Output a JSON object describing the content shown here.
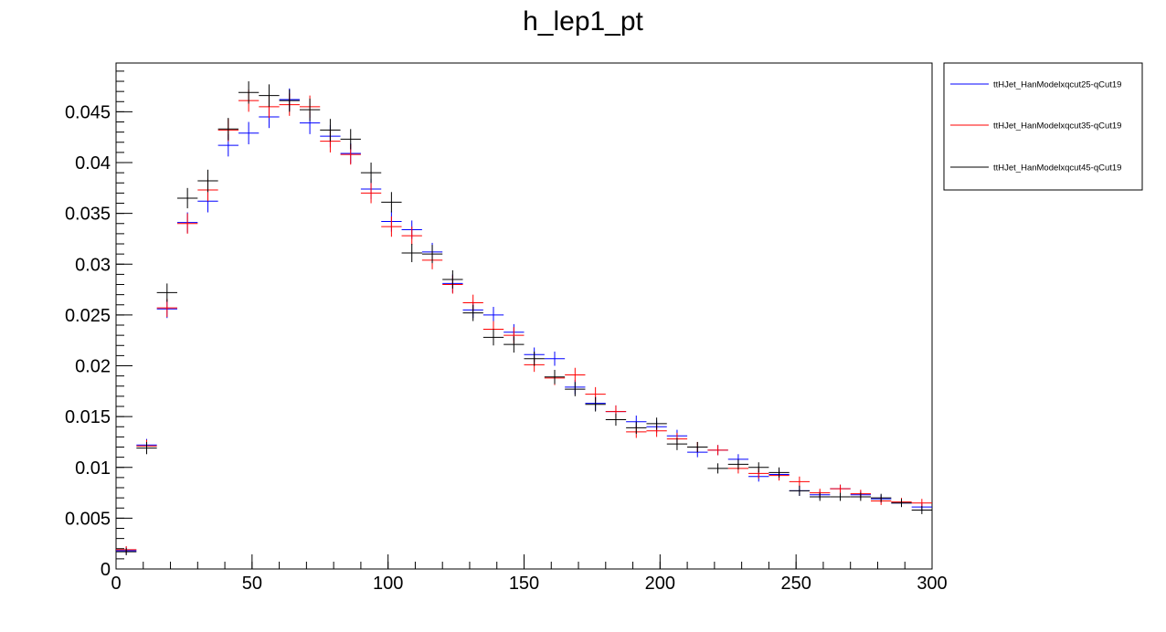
{
  "chart_data": {
    "type": "scatter",
    "title": "h_lep1_pt",
    "xlabel": "",
    "ylabel": "",
    "xlim": [
      0,
      300
    ],
    "ylim": [
      0,
      0.0498
    ],
    "bin_width": 7.5,
    "x_ticks": [
      0,
      50,
      100,
      150,
      200,
      250,
      300
    ],
    "x_tick_labels": [
      "0",
      "50",
      "100",
      "150",
      "200",
      "250",
      "300"
    ],
    "y_ticks": [
      0,
      0.005,
      0.01,
      0.015,
      0.02,
      0.025,
      0.03,
      0.035,
      0.04,
      0.045
    ],
    "y_tick_labels": [
      "0",
      "0.005",
      "0.01",
      "0.015",
      "0.02",
      "0.025",
      "0.03",
      "0.035",
      "0.04",
      "0.045"
    ],
    "grid": false,
    "legend_position": "right-top",
    "x": [
      3.75,
      11.25,
      18.75,
      26.25,
      33.75,
      41.25,
      48.75,
      56.25,
      63.75,
      71.25,
      78.75,
      86.25,
      93.75,
      101.25,
      108.75,
      116.25,
      123.75,
      131.25,
      138.75,
      146.25,
      153.75,
      161.25,
      168.75,
      176.25,
      183.75,
      191.25,
      198.75,
      206.25,
      213.75,
      221.25,
      228.75,
      236.25,
      243.75,
      251.25,
      258.75,
      266.25,
      273.75,
      281.25,
      288.75,
      296.25
    ],
    "series": [
      {
        "name": "ttHJet_HanModelxqcut25-qCut19",
        "color": "#0000ff",
        "values": [
          0.0018,
          0.0122,
          0.0256,
          0.0341,
          0.0362,
          0.0417,
          0.0429,
          0.0445,
          0.0462,
          0.0439,
          0.0426,
          0.0409,
          0.0374,
          0.0342,
          0.0334,
          0.0312,
          0.0281,
          0.0255,
          0.025,
          0.0233,
          0.0211,
          0.0207,
          0.0179,
          0.0163,
          0.0155,
          0.0145,
          0.014,
          0.0131,
          0.0115,
          0.0117,
          0.0108,
          0.0091,
          0.0093,
          0.0077,
          0.0073,
          0.0079,
          0.0073,
          0.0069,
          0.0065,
          0.0061
        ],
        "errors": [
          0.00035,
          0.0006,
          0.0009,
          0.001,
          0.0011,
          0.0011,
          0.0011,
          0.0011,
          0.0011,
          0.0011,
          0.0011,
          0.001,
          0.001,
          0.001,
          0.0009,
          0.0009,
          0.0009,
          0.0008,
          0.0008,
          0.0008,
          0.0007,
          0.0007,
          0.0007,
          0.0007,
          0.0006,
          0.0006,
          0.0006,
          0.0006,
          0.0005,
          0.0005,
          0.0005,
          0.0005,
          0.0005,
          0.0005,
          0.0004,
          0.0004,
          0.0004,
          0.0004,
          0.0004,
          0.0004
        ]
      },
      {
        "name": "ttHJet_HanModelxqcut35-qCut19",
        "color": "#ff0000",
        "values": [
          0.0019,
          0.0121,
          0.0257,
          0.034,
          0.0373,
          0.0432,
          0.0461,
          0.0455,
          0.0457,
          0.0455,
          0.0421,
          0.0408,
          0.037,
          0.0337,
          0.0328,
          0.0304,
          0.028,
          0.0262,
          0.0236,
          0.023,
          0.0201,
          0.0188,
          0.0191,
          0.0172,
          0.0155,
          0.0135,
          0.0136,
          0.0128,
          0.012,
          0.0117,
          0.0099,
          0.0094,
          0.0092,
          0.0086,
          0.0075,
          0.0079,
          0.0074,
          0.0067,
          0.0066,
          0.0065
        ],
        "errors": [
          0.00035,
          0.0006,
          0.0009,
          0.001,
          0.0011,
          0.0011,
          0.0011,
          0.0011,
          0.0011,
          0.0011,
          0.0011,
          0.001,
          0.001,
          0.001,
          0.0009,
          0.0009,
          0.0009,
          0.0008,
          0.0008,
          0.0008,
          0.0007,
          0.0007,
          0.0007,
          0.0007,
          0.0006,
          0.0006,
          0.0006,
          0.0006,
          0.0005,
          0.0005,
          0.0005,
          0.0005,
          0.0005,
          0.0005,
          0.0004,
          0.0004,
          0.0004,
          0.0004,
          0.0004,
          0.0004
        ]
      },
      {
        "name": "ttHJet_HanModelxqcut45-qCut19",
        "color": "#000000",
        "values": [
          0.0017,
          0.0119,
          0.0272,
          0.0365,
          0.0382,
          0.0433,
          0.0469,
          0.0466,
          0.0461,
          0.0452,
          0.0432,
          0.0423,
          0.039,
          0.0361,
          0.0311,
          0.031,
          0.0285,
          0.0252,
          0.0228,
          0.0221,
          0.0207,
          0.0189,
          0.0177,
          0.0162,
          0.0147,
          0.0139,
          0.0143,
          0.0123,
          0.012,
          0.0099,
          0.0103,
          0.01,
          0.0095,
          0.0077,
          0.0071,
          0.0071,
          0.0071,
          0.007,
          0.0065,
          0.0058
        ],
        "errors": [
          0.00035,
          0.0006,
          0.0009,
          0.001,
          0.0011,
          0.0011,
          0.0011,
          0.0011,
          0.0011,
          0.0011,
          0.0011,
          0.001,
          0.001,
          0.001,
          0.0009,
          0.0009,
          0.0009,
          0.0008,
          0.0008,
          0.0008,
          0.0007,
          0.0007,
          0.0007,
          0.0007,
          0.0006,
          0.0006,
          0.0006,
          0.0006,
          0.0005,
          0.0005,
          0.0005,
          0.0005,
          0.0005,
          0.0005,
          0.0004,
          0.0004,
          0.0004,
          0.0004,
          0.0004,
          0.0004
        ]
      }
    ]
  }
}
